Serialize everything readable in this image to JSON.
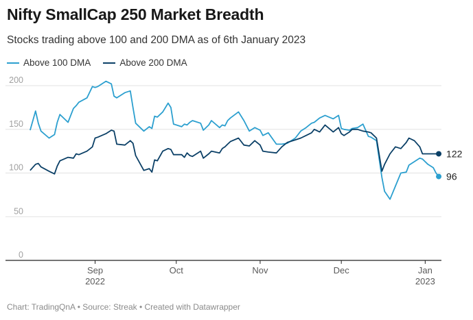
{
  "title": "Nifty SmallCap 250 Market Breadth",
  "subtitle": "Stocks trading above 100 and 200 DMA as of 6th January 2023",
  "footer": "Chart: TradingQnA • Source: Streak • Created with Datawrapper",
  "colors": {
    "above_100": "#2b9fcf",
    "above_200": "#0a3f66",
    "grid": "#e2e2e2",
    "axis": "#222222"
  },
  "chart_data": {
    "type": "line",
    "title": "Nifty SmallCap 250 Market Breadth",
    "xlabel": "",
    "ylabel": "",
    "ylim": [
      0,
      200
    ],
    "yticks": [
      "0",
      "50",
      "100",
      "150",
      "200"
    ],
    "xticks": [
      {
        "date": "2022-09-01",
        "label": "Sep",
        "sublabel": "2022"
      },
      {
        "date": "2022-10-01",
        "label": "Oct",
        "sublabel": ""
      },
      {
        "date": "2022-11-01",
        "label": "Nov",
        "sublabel": ""
      },
      {
        "date": "2022-12-01",
        "label": "Dec",
        "sublabel": ""
      },
      {
        "date": "2023-01-01",
        "label": "Jan",
        "sublabel": "2023"
      }
    ],
    "x": [
      "2022-08-08",
      "2022-08-10",
      "2022-08-11",
      "2022-08-12",
      "2022-08-15",
      "2022-08-17",
      "2022-08-18",
      "2022-08-19",
      "2022-08-22",
      "2022-08-24",
      "2022-08-25",
      "2022-08-26",
      "2022-08-29",
      "2022-08-31",
      "2022-09-01",
      "2022-09-02",
      "2022-09-05",
      "2022-09-07",
      "2022-09-08",
      "2022-09-09",
      "2022-09-12",
      "2022-09-14",
      "2022-09-15",
      "2022-09-16",
      "2022-09-19",
      "2022-09-21",
      "2022-09-22",
      "2022-09-23",
      "2022-09-24",
      "2022-09-26",
      "2022-09-28",
      "2022-09-29",
      "2022-09-30",
      "2022-10-03",
      "2022-10-04",
      "2022-10-05",
      "2022-10-06",
      "2022-10-07",
      "2022-10-10",
      "2022-10-11",
      "2022-10-13",
      "2022-10-14",
      "2022-10-17",
      "2022-10-18",
      "2022-10-19",
      "2022-10-20",
      "2022-10-21",
      "2022-10-24",
      "2022-10-26",
      "2022-10-28",
      "2022-10-30",
      "2022-11-01",
      "2022-11-02",
      "2022-11-04",
      "2022-11-07",
      "2022-11-09",
      "2022-11-11",
      "2022-11-14",
      "2022-11-16",
      "2022-11-18",
      "2022-11-20",
      "2022-11-21",
      "2022-11-23",
      "2022-11-25",
      "2022-11-28",
      "2022-11-30",
      "2022-12-01",
      "2022-12-02",
      "2022-12-04",
      "2022-12-05",
      "2022-12-07",
      "2022-12-09",
      "2022-12-11",
      "2022-12-12",
      "2022-12-14",
      "2022-12-16",
      "2022-12-17",
      "2022-12-19",
      "2022-12-21",
      "2022-12-23",
      "2022-12-25",
      "2022-12-26",
      "2022-12-28",
      "2022-12-30",
      "2022-12-31",
      "2023-01-02",
      "2023-01-04",
      "2023-01-05",
      "2023-01-06"
    ],
    "series": [
      {
        "name": "Above 100 DMA",
        "end_label": "96",
        "values": [
          149,
          171,
          157,
          148,
          140,
          144,
          158,
          167,
          158,
          174,
          177,
          181,
          186,
          199,
          198,
          199,
          205,
          202,
          188,
          186,
          192,
          194,
          175,
          157,
          148,
          153,
          151,
          165,
          164,
          170,
          180,
          175,
          156,
          153,
          156,
          155,
          158,
          160,
          157,
          149,
          155,
          160,
          152,
          155,
          154,
          160,
          163,
          170,
          160,
          148,
          152,
          149,
          143,
          146,
          133,
          133,
          134,
          140,
          148,
          152,
          157,
          158,
          163,
          166,
          162,
          166,
          151,
          150,
          149,
          151,
          152,
          156,
          142,
          141,
          137,
          95,
          79,
          70,
          85,
          100,
          101,
          109,
          113,
          117,
          116,
          110,
          106,
          100,
          96
        ],
        "color": "#2b9fcf"
      },
      {
        "name": "Above 200 DMA",
        "end_label": "122",
        "values": [
          103,
          110,
          111,
          107,
          102,
          99,
          108,
          114,
          118,
          117,
          122,
          121,
          125,
          130,
          140,
          141,
          145,
          149,
          148,
          133,
          132,
          137,
          134,
          120,
          103,
          105,
          101,
          115,
          114,
          125,
          128,
          127,
          121,
          121,
          118,
          123,
          120,
          119,
          125,
          117,
          122,
          125,
          123,
          128,
          130,
          133,
          136,
          140,
          132,
          131,
          137,
          132,
          125,
          124,
          123,
          130,
          135,
          138,
          140,
          143,
          146,
          150,
          147,
          155,
          147,
          152,
          145,
          143,
          147,
          150,
          150,
          148,
          147,
          146,
          140,
          102,
          110,
          122,
          130,
          128,
          135,
          140,
          137,
          130,
          122,
          122,
          122,
          122,
          122
        ],
        "color": "#0a3f66"
      }
    ],
    "grid": true,
    "legend_position": "top-left"
  }
}
